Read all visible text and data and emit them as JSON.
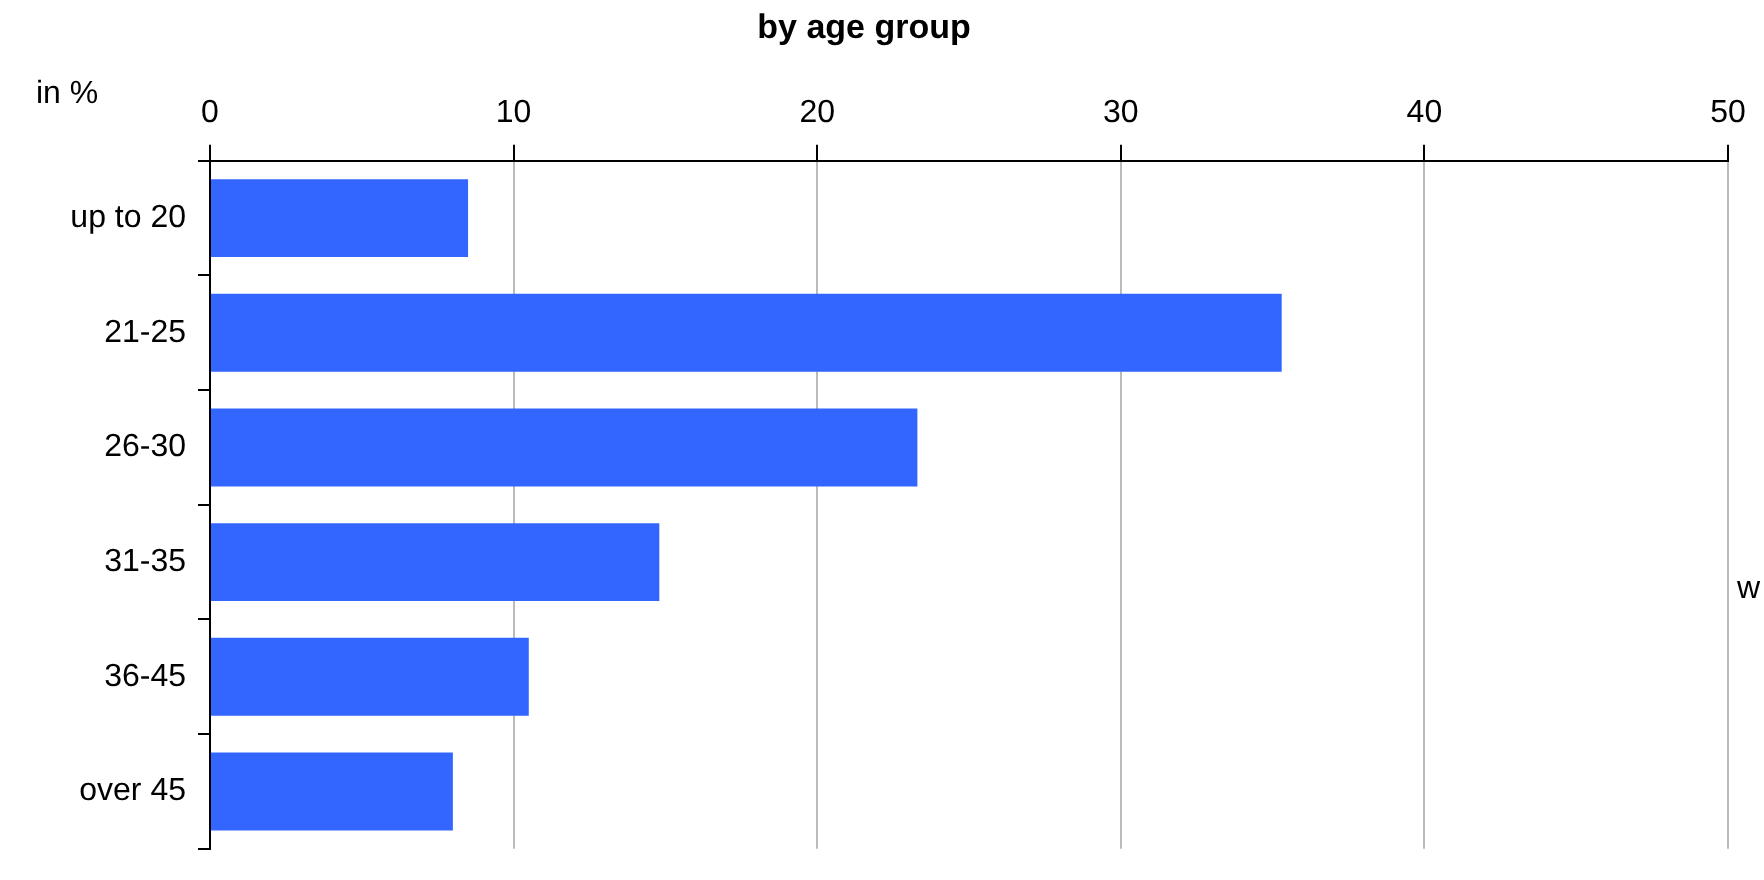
{
  "chart_data": {
    "type": "bar",
    "orientation": "horizontal",
    "title": "by age group",
    "xlabel": "in %",
    "categories": [
      "up to 20",
      "21-25",
      "26-30",
      "31-35",
      "36-45",
      "over 45"
    ],
    "values": [
      8.5,
      35.3,
      23.3,
      14.8,
      10.5,
      8.0
    ],
    "color": "#3366ff",
    "xlim": [
      0,
      50
    ],
    "xticks": [
      0,
      10,
      20,
      30,
      40,
      50
    ],
    "grid": "x",
    "annotations": [
      "w"
    ]
  }
}
